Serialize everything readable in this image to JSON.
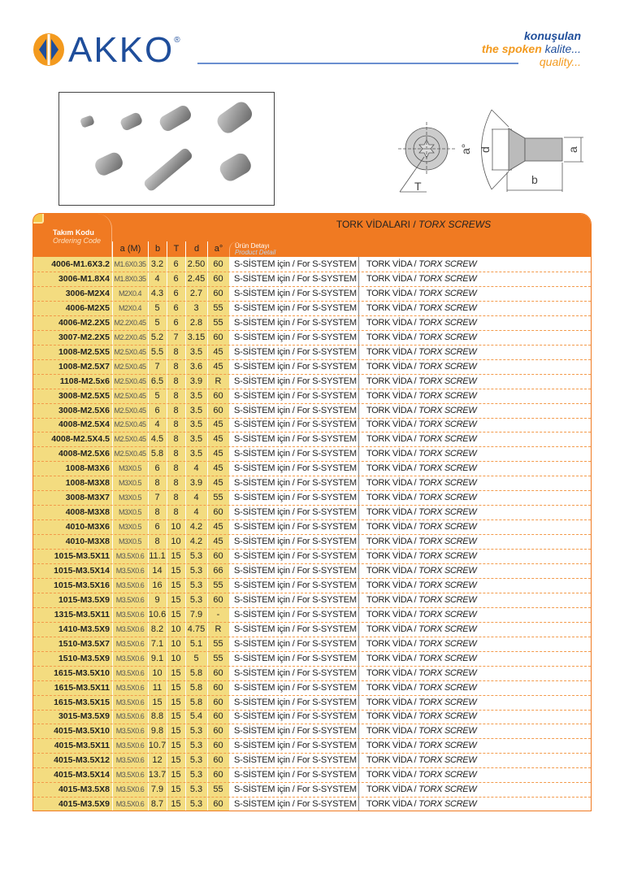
{
  "brand": {
    "name": "AKKO",
    "registered": "®",
    "slogan_line1": "konuşulan",
    "slogan_line2a": "the spoken",
    "slogan_line2b": "kalite...",
    "slogan_line3": "quality..."
  },
  "colors": {
    "orange": "#f07a22",
    "blue": "#1f4e9b",
    "yellow": "#f3dc80"
  },
  "diagram": {
    "labels": {
      "T": "T",
      "angle": "a°",
      "d": "d",
      "a": "a",
      "b": "b"
    }
  },
  "table": {
    "title_tr": "TORK VİDALARI / ",
    "title_en": "TORX SCREWS",
    "code_header_tr": "Takım Kodu",
    "code_header_en": "Ordering Code",
    "columns": [
      "a (M)",
      "b",
      "T",
      "d",
      "a°"
    ],
    "detail_header_tr": "Ürün Detayı",
    "detail_header_en": "Product Detail",
    "detail_text": "S-SİSTEM için / For S-SYSTEM",
    "product_tr": "TORK VİDA / ",
    "product_en": "TORX SCREW",
    "rows": [
      [
        "4006-M1.6X3.2",
        "M1.6X0.35",
        "3.2",
        "6",
        "2.50",
        "60"
      ],
      [
        "3006-M1.8X4",
        "M1.8X0.35",
        "4",
        "6",
        "2.45",
        "60"
      ],
      [
        "3006-M2X4",
        "M2X0.4",
        "4.3",
        "6",
        "2.7",
        "60"
      ],
      [
        "4006-M2X5",
        "M2X0.4",
        "5",
        "6",
        "3",
        "55"
      ],
      [
        "4006-M2.2X5",
        "M2.2X0.45",
        "5",
        "6",
        "2.8",
        "55"
      ],
      [
        "3007-M2.2X5",
        "M2.2X0.45",
        "5.2",
        "7",
        "3.15",
        "60"
      ],
      [
        "1008-M2.5X5",
        "M2.5X0.45",
        "5.5",
        "8",
        "3.5",
        "45"
      ],
      [
        "1008-M2.5X7",
        "M2.5X0.45",
        "7",
        "8",
        "3.6",
        "45"
      ],
      [
        "1108-M2.5x6",
        "M2.5X0.45",
        "6.5",
        "8",
        "3.9",
        "R"
      ],
      [
        "3008-M2.5X5",
        "M2.5X0.45",
        "5",
        "8",
        "3.5",
        "60"
      ],
      [
        "3008-M2.5X6",
        "M2.5X0.45",
        "6",
        "8",
        "3.5",
        "60"
      ],
      [
        "4008-M2.5X4",
        "M2.5X0.45",
        "4",
        "8",
        "3.5",
        "45"
      ],
      [
        "4008-M2.5X4.5",
        "M2.5X0.45",
        "4.5",
        "8",
        "3.5",
        "45"
      ],
      [
        "4008-M2.5X6",
        "M2.5X0.45",
        "5.8",
        "8",
        "3.5",
        "45"
      ],
      [
        "1008-M3X6",
        "M3X0.5",
        "6",
        "8",
        "4",
        "45"
      ],
      [
        "1008-M3X8",
        "M3X0.5",
        "8",
        "8",
        "3.9",
        "45"
      ],
      [
        "3008-M3X7",
        "M3X0.5",
        "7",
        "8",
        "4",
        "55"
      ],
      [
        "4008-M3X8",
        "M3X0.5",
        "8",
        "8",
        "4",
        "60"
      ],
      [
        "4010-M3X6",
        "M3X0.5",
        "6",
        "10",
        "4.2",
        "45"
      ],
      [
        "4010-M3X8",
        "M3X0.5",
        "8",
        "10",
        "4.2",
        "45"
      ],
      [
        "1015-M3.5X11",
        "M3.5X0.6",
        "11.1",
        "15",
        "5.3",
        "60"
      ],
      [
        "1015-M3.5X14",
        "M3.5X0.6",
        "14",
        "15",
        "5.3",
        "66"
      ],
      [
        "1015-M3.5X16",
        "M3.5X0.6",
        "16",
        "15",
        "5.3",
        "55"
      ],
      [
        "1015-M3.5X9",
        "M3.5X0.6",
        "9",
        "15",
        "5.3",
        "60"
      ],
      [
        "1315-M3.5X11",
        "M3.5X0.6",
        "10.6",
        "15",
        "7.9",
        "-"
      ],
      [
        "1410-M3.5X9",
        "M3.5X0.6",
        "8.2",
        "10",
        "4.75",
        "R"
      ],
      [
        "1510-M3.5X7",
        "M3.5X0.6",
        "7.1",
        "10",
        "5.1",
        "55"
      ],
      [
        "1510-M3.5X9",
        "M3.5X0.6",
        "9.1",
        "10",
        "5",
        "55"
      ],
      [
        "1615-M3.5X10",
        "M3.5X0.6",
        "10",
        "15",
        "5.8",
        "60"
      ],
      [
        "1615-M3.5X11",
        "M3.5X0.6",
        "11",
        "15",
        "5.8",
        "60"
      ],
      [
        "1615-M3.5X15",
        "M3.5X0.6",
        "15",
        "15",
        "5.8",
        "60"
      ],
      [
        "3015-M3.5X9",
        "M3.5X0.6",
        "8.8",
        "15",
        "5.4",
        "60"
      ],
      [
        "4015-M3.5X10",
        "M3.5X0.6",
        "9.8",
        "15",
        "5.3",
        "60"
      ],
      [
        "4015-M3.5X11",
        "M3.5X0.6",
        "10.7",
        "15",
        "5.3",
        "60"
      ],
      [
        "4015-M3.5X12",
        "M3.5X0.6",
        "12",
        "15",
        "5.3",
        "60"
      ],
      [
        "4015-M3.5X14",
        "M3.5X0.6",
        "13.7",
        "15",
        "5.3",
        "60"
      ],
      [
        "4015-M3.5X8",
        "M3.5X0.6",
        "7.9",
        "15",
        "5.3",
        "55"
      ],
      [
        "4015-M3.5X9",
        "M3.5X0.6",
        "8.7",
        "15",
        "5.3",
        "60"
      ]
    ]
  }
}
